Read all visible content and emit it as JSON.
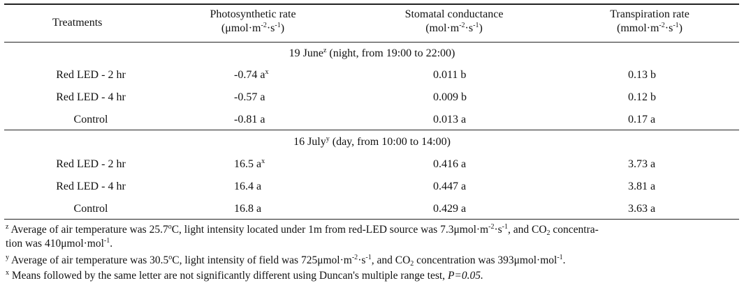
{
  "table": {
    "headers": {
      "treatments": "Treatments",
      "photosynthetic": {
        "label": "Photosynthetic rate",
        "unit_prefix": "(μmol·m",
        "unit_exp1": "-2",
        "unit_mid": "·s",
        "unit_exp2": "-1",
        "unit_suffix": ")"
      },
      "stomatal": {
        "label": "Stomatal conductance",
        "unit_prefix": "(mol·m",
        "unit_exp1": "-2",
        "unit_mid": "·s",
        "unit_exp2": "-1",
        "unit_suffix": ")"
      },
      "transpiration": {
        "label": "Transpiration rate",
        "unit_prefix": "(mmol·m",
        "unit_exp1": "-2",
        "unit_mid": "·s",
        "unit_exp2": "-1",
        "unit_suffix": ")"
      }
    },
    "sections": [
      {
        "title_pre": "19 June",
        "title_sup": "z",
        "title_post": " (night, from 19:00 to 22:00)",
        "rows": [
          {
            "treatment": "Red LED - 2 hr",
            "photo": "-0.74 a",
            "photo_sup": "x",
            "stomatal": "0.011 b",
            "transpiration": "0.13 b"
          },
          {
            "treatment": "Red LED - 4 hr",
            "photo": "-0.57 a",
            "photo_sup": "",
            "stomatal": "0.009 b",
            "transpiration": "0.12 b"
          },
          {
            "treatment": "Control",
            "photo": "-0.81 a",
            "photo_sup": "",
            "stomatal": "0.013 a",
            "transpiration": "0.17 a"
          }
        ]
      },
      {
        "title_pre": "16 July",
        "title_sup": "y",
        "title_post": " (day, from 10:00 to 14:00)",
        "rows": [
          {
            "treatment": "Red LED - 2 hr",
            "photo": "16.5 a",
            "photo_sup": "x",
            "stomatal": "0.416 a",
            "transpiration": "3.73 a"
          },
          {
            "treatment": "Red LED - 4 hr",
            "photo": "16.4 a",
            "photo_sup": "",
            "stomatal": "0.447 a",
            "transpiration": "3.81 a"
          },
          {
            "treatment": "Control",
            "photo": "16.8 a",
            "photo_sup": "",
            "stomatal": "0.429 a",
            "transpiration": "3.63 a"
          }
        ]
      }
    ]
  },
  "footnotes": {
    "z": {
      "mark": "z",
      "t1": " Average of air temperature was 25.7",
      "t1_sup": "o",
      "t2": "C, light intensity located under 1m from red-LED source was 7.3μmol·m",
      "t2_sup1": "-2",
      "t3": "·s",
      "t3_sup": "-1",
      "t4": ", and CO",
      "t4_sub": "2",
      "t5": " concentra-",
      "line2_a": "tion was 410μmol·mol",
      "line2_sup": "-1",
      "line2_b": "."
    },
    "y": {
      "mark": "y",
      "t1": " Average of air temperature was 30.5",
      "t1_sup": "o",
      "t2": "C, light intensity of field was 725μmol·m",
      "t2_sup1": "-2",
      "t3": "·s",
      "t3_sup": "-1",
      "t4": ", and CO",
      "t4_sub": "2",
      "t5": " concentration was 393μmol·mol",
      "t5_sup": "-1",
      "t6": "."
    },
    "x": {
      "mark": "x",
      "text": " Means followed by the same letter are not significantly different using Duncan's multiple range test, ",
      "italic": "P=0.05."
    }
  }
}
